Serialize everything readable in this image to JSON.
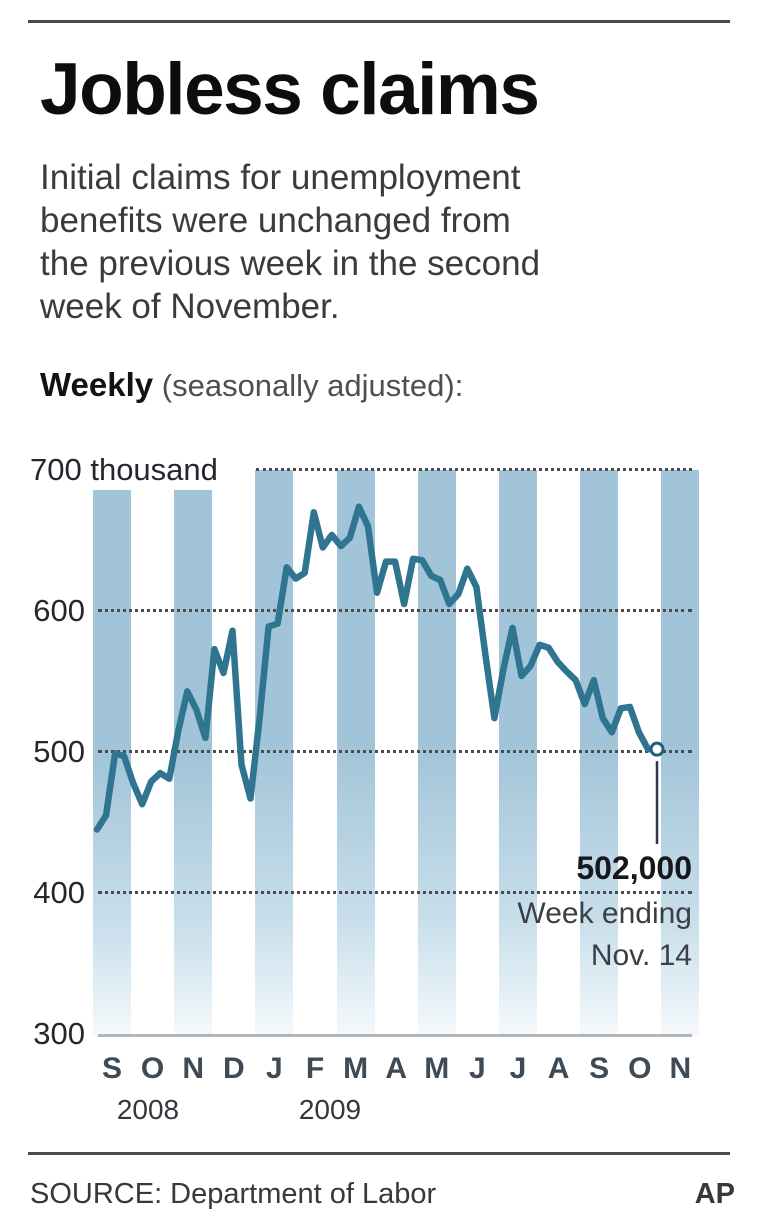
{
  "header": {
    "title": "Jobless claims",
    "subtitle_lines": [
      "Initial claims for unemployment",
      "benefits were unchanged from",
      "the previous week in the second",
      "week of November."
    ],
    "weekly_label": "Weekly",
    "weekly_note": "(seasonally adjusted):"
  },
  "chart_data": {
    "type": "line",
    "title": "Weekly initial jobless claims, seasonally adjusted",
    "unit": "thousands",
    "ylim": [
      300,
      700
    ],
    "grid": "dotted horizontal gridlines at 400-700; solid baseline at 300",
    "y_ticks": [
      {
        "value": 700,
        "label": "700 thousand"
      },
      {
        "value": 600,
        "label": "600"
      },
      {
        "value": 500,
        "label": "500"
      },
      {
        "value": 400,
        "label": "400"
      },
      {
        "value": 300,
        "label": "300"
      }
    ],
    "x_month_labels": [
      "S",
      "O",
      "N",
      "D",
      "J",
      "F",
      "M",
      "A",
      "M",
      "J",
      "J",
      "A",
      "S",
      "O",
      "N"
    ],
    "shaded_month_indices": [
      0,
      2,
      4,
      6,
      8,
      10,
      12,
      14
    ],
    "year_labels": [
      "2008",
      "2009"
    ],
    "series": [
      {
        "name": "Initial claims (thousands, weekly)",
        "values": [
          445,
          455,
          499,
          497,
          478,
          463,
          479,
          485,
          481,
          515,
          543,
          530,
          510,
          573,
          556,
          586,
          491,
          467,
          524,
          589,
          591,
          631,
          623,
          627,
          670,
          645,
          654,
          646,
          652,
          674,
          660,
          613,
          635,
          635,
          605,
          637,
          636,
          625,
          622,
          605,
          612,
          630,
          617,
          569,
          524,
          559,
          588,
          554,
          561,
          576,
          574,
          564,
          557,
          551,
          534,
          551,
          524,
          514,
          531,
          532,
          514,
          502,
          502
        ]
      }
    ],
    "end_point": {
      "value": 502,
      "value_label": "502,000",
      "note_line1": "Week ending",
      "note_line2": "Nov. 14"
    }
  },
  "footer": {
    "source": "SOURCE: Department of Labor",
    "credit": "AP"
  },
  "colors": {
    "band": "#a1c4d8",
    "line": "#2f7590",
    "marker_fill": "#ffffff",
    "marker_stroke": "#265e78",
    "pointer": "#2c3a4e",
    "grid_dot": "#4c4c4c",
    "baseline": "#b5b5b5",
    "month_label": "#3e4a55",
    "rule": "#4a4a4a"
  }
}
